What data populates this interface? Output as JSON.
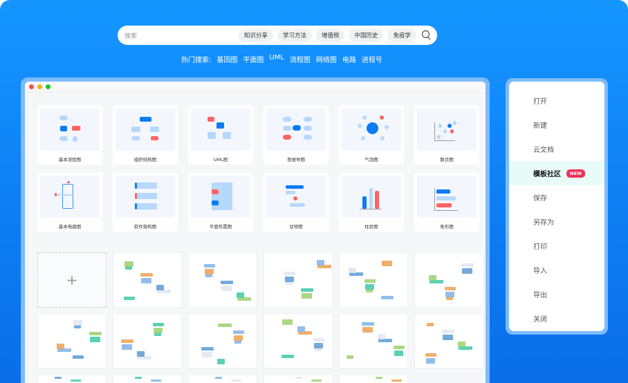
{
  "search": {
    "placeholder": "搜索",
    "chips": [
      "知识分享",
      "学习方法",
      "增值税",
      "中国历史",
      "免疫学"
    ]
  },
  "hot": {
    "label": "热门搜索:",
    "items": [
      "基因图",
      "平面图",
      "UML",
      "流程图",
      "网络图",
      "电路",
      "进程号"
    ]
  },
  "window": {
    "dots": [
      "#ff4b4b",
      "#ffad0d",
      "#1ec51e"
    ]
  },
  "categories": [
    {
      "label": "基本流程图",
      "icon": "flowchart-icon"
    },
    {
      "label": "组织结构图",
      "icon": "org-chart-icon"
    },
    {
      "label": "UML图",
      "icon": "uml-icon"
    },
    {
      "label": "思维导图",
      "icon": "mind-map-icon"
    },
    {
      "label": "气泡图",
      "icon": "bubble-chart-icon"
    },
    {
      "label": "散点图",
      "icon": "scatter-chart-icon"
    },
    {
      "label": "基本电路图",
      "icon": "circuit-icon"
    },
    {
      "label": "软件架构图",
      "icon": "software-architecture-icon"
    },
    {
      "label": "平面布置图",
      "icon": "floor-plan-icon"
    },
    {
      "label": "甘特图",
      "icon": "gantt-icon"
    },
    {
      "label": "柱状图",
      "icon": "column-chart-icon"
    },
    {
      "label": "条形图",
      "icon": "bar-chart-icon"
    }
  ],
  "templates": {
    "new_label": "+",
    "count": 17
  },
  "menu": {
    "items": [
      "打开",
      "新建",
      "云文档",
      "模板社区",
      "保存",
      "另存为",
      "打印",
      "导入",
      "导出",
      "关闭"
    ],
    "active": "模板社区",
    "badge": "NEW"
  },
  "colors": {
    "accent": "#0a7cf5",
    "light": "#b6d8fb",
    "red": "#ff6464",
    "badge": "#f0325a"
  }
}
